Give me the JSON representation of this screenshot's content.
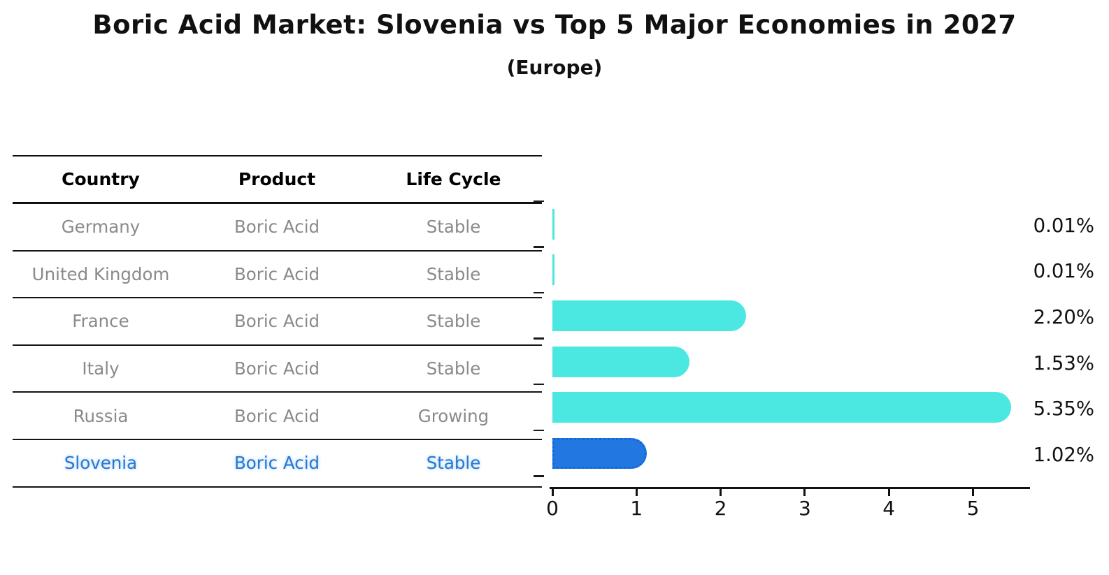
{
  "title": "Boric Acid Market: Slovenia vs Top 5 Major Economies in 2027",
  "subtitle": "(Europe)",
  "table": {
    "headers": [
      "Country",
      "Product",
      "Life Cycle"
    ],
    "rows": [
      {
        "country": "Germany",
        "product": "Boric Acid",
        "life_cycle": "Stable",
        "highlight": false
      },
      {
        "country": "United Kingdom",
        "product": "Boric Acid",
        "life_cycle": "Stable",
        "highlight": false
      },
      {
        "country": "France",
        "product": "Boric Acid",
        "life_cycle": "Stable",
        "highlight": false
      },
      {
        "country": "Italy",
        "product": "Boric Acid",
        "life_cycle": "Stable",
        "highlight": false
      },
      {
        "country": "Russia",
        "product": "Boric Acid",
        "life_cycle": "Growing",
        "highlight": false
      },
      {
        "country": "Slovenia",
        "product": "Boric Acid",
        "life_cycle": "Stable",
        "highlight": true
      }
    ]
  },
  "chart_data": {
    "type": "bar",
    "orientation": "horizontal",
    "title": "Boric Acid Market: Slovenia vs Top 5 Major Economies in 2027 (Europe)",
    "categories": [
      "Germany",
      "United Kingdom",
      "France",
      "Italy",
      "Russia",
      "Slovenia"
    ],
    "values": [
      0.01,
      0.01,
      2.2,
      1.53,
      5.35,
      1.02
    ],
    "value_labels": [
      "0.01%",
      "0.01%",
      "2.20%",
      "1.53%",
      "5.35%",
      "1.02%"
    ],
    "x_ticks": [
      "0",
      "1",
      "2",
      "3",
      "4",
      "5"
    ],
    "xlim": [
      0,
      5.67
    ],
    "grid": false,
    "legend": "none",
    "highlight_index": 5,
    "colors": {
      "default_bar": "#4AE8E1",
      "highlight_bar": "#2277E0",
      "highlight_bar_border": "#1168D8"
    }
  },
  "colors": {
    "text_primary": "#111111",
    "text_muted": "#8A8A8A",
    "highlight_text": "#2878D2"
  }
}
